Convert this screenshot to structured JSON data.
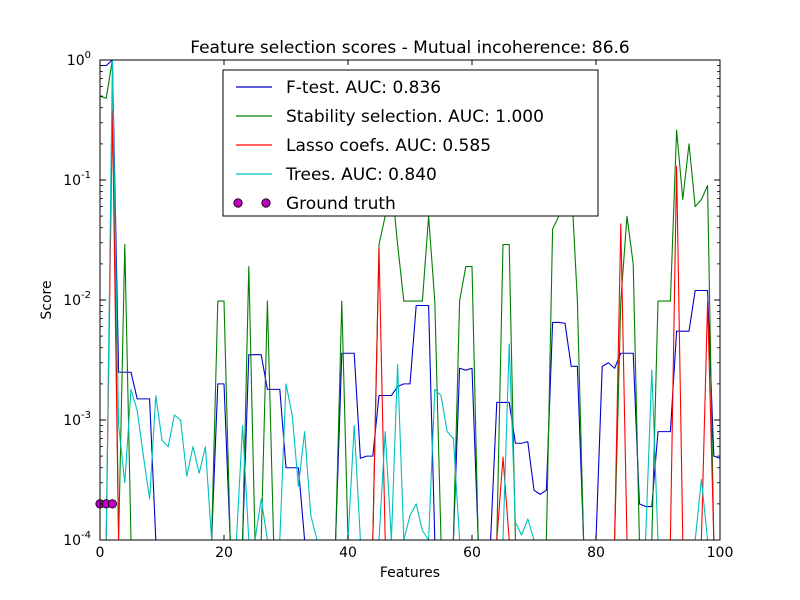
{
  "chart_data": {
    "type": "line",
    "title": "Feature selection scores - Mutual incoherence: 86.6",
    "xlabel": "Features",
    "ylabel": "Score",
    "xlim": [
      0,
      100
    ],
    "ylim": [
      0.0001,
      1
    ],
    "yscale": "log",
    "grid": false,
    "legend_position": "top-center",
    "x_ticks": [
      0,
      20,
      40,
      60,
      80,
      100
    ],
    "x_tick_labels": [
      "0",
      "20",
      "40",
      "60",
      "80",
      "100"
    ],
    "y_ticks": [
      0.0001,
      0.001,
      0.01,
      0.1,
      1
    ],
    "y_tick_labels": [
      {
        "base": "10",
        "exp": "-4"
      },
      {
        "base": "10",
        "exp": "-3"
      },
      {
        "base": "10",
        "exp": "-2"
      },
      {
        "base": "10",
        "exp": "-1"
      },
      {
        "base": "10",
        "exp": "0"
      }
    ],
    "series": [
      {
        "name": "F-test. AUC: 0.836",
        "color": "#0000cc",
        "values": [
          0.9,
          0.9,
          1.0,
          0.0025,
          0.0025,
          0.0025,
          0.0015,
          0.0015,
          0.0015,
          0.0001,
          0.0001,
          0.0001,
          0.0001,
          0.0001,
          0.0001,
          0.0001,
          0.0001,
          0.0001,
          0.0001,
          0.002,
          0.002,
          0.0001,
          0.0001,
          0.0001,
          0.0035,
          0.0035,
          0.0035,
          0.0018,
          0.0018,
          0.0018,
          0.0004,
          0.0004,
          0.0004,
          0.0001,
          0.0001,
          0.0001,
          0.0001,
          0.0001,
          0.0001,
          0.0036,
          0.0036,
          0.0036,
          0.00048,
          0.0005,
          0.0005,
          0.0016,
          0.0016,
          0.0016,
          0.0019,
          0.002,
          0.002,
          0.009,
          0.009,
          0.009,
          0.0001,
          0.0001,
          0.0001,
          0.0001,
          0.0027,
          0.0026,
          0.0027,
          0.0001,
          0.0001,
          0.0001,
          0.0014,
          0.0014,
          0.0014,
          0.00064,
          0.00064,
          0.00066,
          0.00026,
          0.00024,
          0.00026,
          0.0065,
          0.0065,
          0.0064,
          0.0028,
          0.0028,
          0.0001,
          0.0001,
          0.0001,
          0.0028,
          0.003,
          0.0027,
          0.0036,
          0.0036,
          0.0036,
          0.0002,
          0.00019,
          0.00019,
          0.0008,
          0.0008,
          0.0008,
          0.0055,
          0.0055,
          0.0055,
          0.012,
          0.012,
          0.012,
          0.0005,
          0.00048
        ]
      },
      {
        "name": "Stability selection. AUC: 1.000",
        "color": "#007f00",
        "values": [
          0.5,
          0.48,
          1.0,
          0.0001,
          0.029,
          0.0001,
          0.0001,
          0.0001,
          0.0001,
          0.0001,
          0.0001,
          0.0001,
          0.0001,
          0.0001,
          0.0001,
          0.0001,
          0.0001,
          0.0001,
          0.0001,
          0.0098,
          0.0098,
          0.0001,
          0.0001,
          0.0001,
          0.019,
          0.0001,
          0.0001,
          0.0098,
          0.0001,
          0.0001,
          0.0001,
          0.0001,
          0.0001,
          0.0001,
          0.0001,
          0.0001,
          0.0001,
          0.0001,
          0.0001,
          0.0098,
          0.0001,
          0.0001,
          0.0001,
          0.0001,
          0.0001,
          0.029,
          0.05,
          0.1,
          0.029,
          0.0098,
          0.0098,
          0.0098,
          0.0098,
          0.05,
          0.0098,
          0.0001,
          0.0001,
          0.0001,
          0.0098,
          0.019,
          0.019,
          0.0001,
          0.0001,
          0.0001,
          0.0001,
          0.029,
          0.029,
          0.0001,
          0.0001,
          0.0001,
          0.0001,
          0.0001,
          0.0001,
          0.039,
          0.05,
          0.098,
          0.098,
          0.0098,
          0.0001,
          0.0001,
          0.0001,
          0.0001,
          0.0001,
          0.0001,
          0.0098,
          0.05,
          0.02,
          0.0001,
          0.0001,
          0.0001,
          0.0098,
          0.0098,
          0.0098,
          0.26,
          0.069,
          0.2,
          0.06,
          0.069,
          0.09,
          0.0001,
          0.0001
        ]
      },
      {
        "name": "Lasso coefs. AUC: 0.585",
        "color": "#ff0000",
        "values": [
          0.0001,
          0.0001,
          0.38,
          0.0001,
          0.0001,
          0.0001,
          0.0001,
          0.0001,
          0.0001,
          0.0001,
          0.0001,
          0.0001,
          0.0001,
          0.0001,
          0.0001,
          0.0001,
          0.0001,
          0.0001,
          0.0001,
          0.0001,
          0.0001,
          0.0001,
          0.0001,
          0.0001,
          0.0001,
          0.0001,
          0.0001,
          0.0001,
          0.0001,
          0.0001,
          0.0001,
          0.0001,
          0.0001,
          0.0001,
          0.0001,
          0.0001,
          0.0001,
          0.0001,
          0.0001,
          0.0001,
          0.0001,
          0.0001,
          0.0001,
          0.0001,
          0.0001,
          0.027,
          0.0001,
          0.0001,
          0.0001,
          0.0001,
          0.0001,
          0.0001,
          0.0001,
          0.0001,
          0.0001,
          0.0001,
          0.0001,
          0.0001,
          0.0001,
          0.0001,
          0.0001,
          0.0001,
          0.0001,
          0.0001,
          0.0001,
          0.00049,
          0.0001,
          0.0001,
          0.0001,
          0.0001,
          0.0001,
          0.0001,
          0.0001,
          0.0001,
          0.0001,
          0.0001,
          0.0001,
          0.0001,
          0.0001,
          0.0001,
          0.0001,
          0.0001,
          0.0001,
          0.0001,
          0.043,
          0.0001,
          0.0001,
          0.0001,
          0.0001,
          0.0001,
          0.0001,
          0.0001,
          0.0001,
          0.13,
          0.0001,
          0.0001,
          0.0001,
          0.0001,
          0.0098,
          0.0001,
          0.0001
        ]
      },
      {
        "name": "Trees. AUC: 0.840",
        "color": "#00bfbf",
        "values": [
          0.0001,
          0.0001,
          1.0,
          0.0009,
          0.0003,
          0.0018,
          0.0012,
          0.0005,
          0.00022,
          0.0016,
          0.00068,
          0.0006,
          0.0011,
          0.001,
          0.00034,
          0.0006,
          0.00036,
          0.0006,
          0.0001,
          0.0001,
          0.0001,
          0.0001,
          0.0001,
          0.0009,
          0.0001,
          0.0001,
          0.00022,
          0.0001,
          0.0001,
          0.0001,
          0.002,
          0.0011,
          0.00028,
          0.0008,
          0.00016,
          0.0001,
          0.0001,
          0.0001,
          0.0001,
          0.0001,
          0.0001,
          0.0009,
          0.0001,
          0.0001,
          0.0001,
          0.0001,
          0.0008,
          0.0001,
          0.0029,
          0.0001,
          0.00016,
          0.0002,
          0.00012,
          0.0001,
          0.0018,
          0.0016,
          0.0008,
          0.0007,
          0.0001,
          0.0001,
          0.0001,
          0.0001,
          0.0001,
          0.0001,
          0.0001,
          0.0001,
          0.0043,
          0.00014,
          0.00011,
          0.00015,
          0.0001,
          0.0001,
          0.0001,
          0.0001,
          0.0001,
          0.0001,
          0.0001,
          0.0001,
          0.0001,
          0.0001,
          0.0001,
          0.0001,
          0.0001,
          0.0001,
          0.0001,
          0.0001,
          0.0001,
          0.0001,
          0.0001,
          0.0026,
          0.0001,
          0.0001,
          0.0001,
          0.0001,
          0.0001,
          0.0001,
          0.0001,
          0.00032,
          0.0001,
          0.0001,
          0.0001
        ]
      },
      {
        "name": "Ground truth",
        "color": "#bf00bf",
        "marker": "circle",
        "x": [
          0,
          1,
          2
        ],
        "values": [
          0.0002,
          0.0002,
          0.0002
        ]
      }
    ]
  }
}
